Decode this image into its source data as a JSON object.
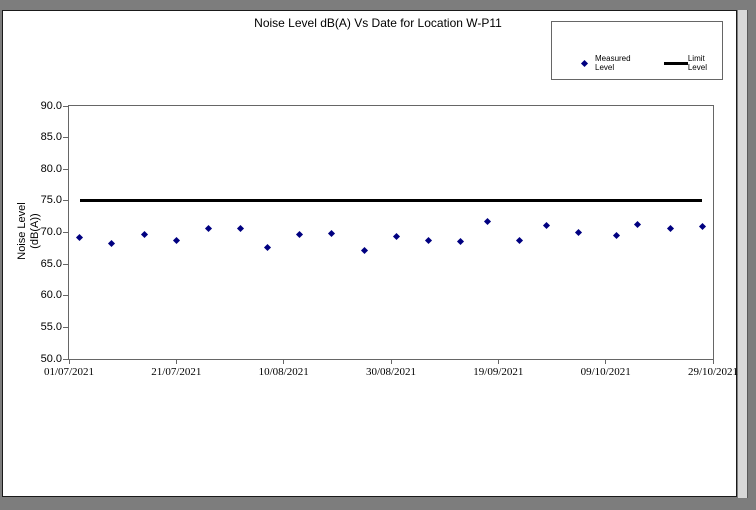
{
  "window": {
    "frame_color": "#7d7d7d",
    "scrollbar_color": "#d8d8d8",
    "page_color": "#ffffff"
  },
  "chart_data": {
    "type": "scatter",
    "title": "Noise Level dB(A) Vs Date for Location W-P11",
    "ylabel_lines": [
      "Noise Level",
      "(dB(A))"
    ],
    "xlabel": "",
    "ylim": [
      50,
      90
    ],
    "x_day_range": [
      0,
      120
    ],
    "grid": false,
    "legend_position": "top-right",
    "yticks": [
      "50.0",
      "55.0",
      "60.0",
      "65.0",
      "70.0",
      "75.0",
      "80.0",
      "85.0",
      "90.0"
    ],
    "xticks": [
      {
        "day": 0,
        "label": "01/07/2021"
      },
      {
        "day": 20,
        "label": "21/07/2021"
      },
      {
        "day": 40,
        "label": "10/08/2021"
      },
      {
        "day": 60,
        "label": "30/08/2021"
      },
      {
        "day": 80,
        "label": "19/09/2021"
      },
      {
        "day": 100,
        "label": "09/10/2021"
      },
      {
        "day": 120,
        "label": "29/10/2021"
      }
    ],
    "series": [
      {
        "name": "Measured Level",
        "type": "scatter",
        "marker": "diamond",
        "color": "#000080",
        "points": [
          {
            "day": 2,
            "date": "03/07/2021",
            "value": 69.2
          },
          {
            "day": 8,
            "date": "09/07/2021",
            "value": 68.2
          },
          {
            "day": 14,
            "date": "15/07/2021",
            "value": 69.7
          },
          {
            "day": 20,
            "date": "21/07/2021",
            "value": 68.8
          },
          {
            "day": 26,
            "date": "27/07/2021",
            "value": 70.6
          },
          {
            "day": 32,
            "date": "02/08/2021",
            "value": 70.6
          },
          {
            "day": 37,
            "date": "07/08/2021",
            "value": 67.6
          },
          {
            "day": 43,
            "date": "13/08/2021",
            "value": 69.7
          },
          {
            "day": 49,
            "date": "19/08/2021",
            "value": 69.9
          },
          {
            "day": 55,
            "date": "25/08/2021",
            "value": 67.2
          },
          {
            "day": 61,
            "date": "31/08/2021",
            "value": 69.4
          },
          {
            "day": 67,
            "date": "06/09/2021",
            "value": 68.7
          },
          {
            "day": 73,
            "date": "12/09/2021",
            "value": 68.6
          },
          {
            "day": 78,
            "date": "17/09/2021",
            "value": 71.8
          },
          {
            "day": 84,
            "date": "23/09/2021",
            "value": 68.8
          },
          {
            "day": 89,
            "date": "28/09/2021",
            "value": 71.1
          },
          {
            "day": 95,
            "date": "04/10/2021",
            "value": 70.0
          },
          {
            "day": 102,
            "date": "11/10/2021",
            "value": 69.5
          },
          {
            "day": 106,
            "date": "15/10/2021",
            "value": 71.2
          },
          {
            "day": 112,
            "date": "21/10/2021",
            "value": 70.6
          },
          {
            "day": 118,
            "date": "27/10/2021",
            "value": 70.9
          }
        ]
      },
      {
        "name": "Limit Level",
        "type": "line",
        "color": "#000000",
        "value": 75.0,
        "x_span_days": [
          2,
          118
        ]
      }
    ]
  }
}
